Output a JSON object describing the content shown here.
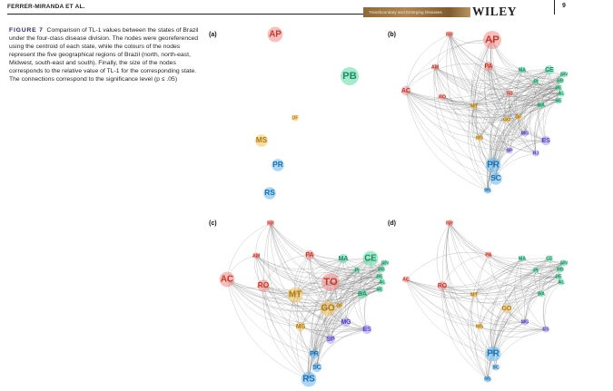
{
  "header": {
    "running_head": "FERRER-MIRANDA ET AL.",
    "journal_banner": "Transboundary and Emerging Diseases",
    "publisher": "WILEY",
    "page_number": "9"
  },
  "caption": {
    "label": "FIGURE 7",
    "text": "Comparison of TL-1 values between the states of Brazil under the four-class disease division. The nodes were georeferenced using the centroid of each state, while the colours of the nodes represent the five geographical regions of Brazil (north, north-east, Midwest, south-east and south). Finally, the size of the nodes corresponds to the relative value of TL-1 for the corresponding state. The connections correspond to the significance level (p ≤ .05)"
  },
  "region_colors": {
    "north": "#f08a86",
    "northeast": "#5fd9a6",
    "midwest": "#f2c25c",
    "southeast": "#a99bf0",
    "south": "#62b7ec"
  },
  "panels": [
    {
      "letter": "(a)",
      "edges": false,
      "nodes": [
        {
          "id": "AP",
          "region": "north",
          "size": 4
        },
        {
          "id": "PB",
          "region": "northeast",
          "size": 5
        },
        {
          "id": "DF",
          "region": "midwest",
          "size": 1
        },
        {
          "id": "MS",
          "region": "midwest",
          "size": 3
        },
        {
          "id": "PR",
          "region": "south",
          "size": 3
        },
        {
          "id": "RS",
          "region": "south",
          "size": 3
        }
      ]
    },
    {
      "letter": "(b)",
      "edges": true,
      "nodes": [
        {
          "id": "RR",
          "region": "north",
          "size": 1
        },
        {
          "id": "AP",
          "region": "north",
          "size": 5
        },
        {
          "id": "AM",
          "region": "north",
          "size": 1
        },
        {
          "id": "PA",
          "region": "north",
          "size": 2
        },
        {
          "id": "AC",
          "region": "north",
          "size": 2
        },
        {
          "id": "RO",
          "region": "north",
          "size": 1
        },
        {
          "id": "TO",
          "region": "north",
          "size": 1
        },
        {
          "id": "MA",
          "region": "northeast",
          "size": 1
        },
        {
          "id": "CE",
          "region": "northeast",
          "size": 2
        },
        {
          "id": "RN",
          "region": "northeast",
          "size": 1
        },
        {
          "id": "PB",
          "region": "northeast",
          "size": 1
        },
        {
          "id": "PI",
          "region": "northeast",
          "size": 1
        },
        {
          "id": "PE",
          "region": "northeast",
          "size": 1
        },
        {
          "id": "AL",
          "region": "northeast",
          "size": 1
        },
        {
          "id": "SE",
          "region": "northeast",
          "size": 1
        },
        {
          "id": "BA",
          "region": "northeast",
          "size": 1
        },
        {
          "id": "MT",
          "region": "midwest",
          "size": 1
        },
        {
          "id": "GO",
          "region": "midwest",
          "size": 1
        },
        {
          "id": "DF",
          "region": "midwest",
          "size": 1
        },
        {
          "id": "MS",
          "region": "midwest",
          "size": 1
        },
        {
          "id": "MG",
          "region": "southeast",
          "size": 1
        },
        {
          "id": "ES",
          "region": "southeast",
          "size": 2
        },
        {
          "id": "RJ",
          "region": "southeast",
          "size": 1
        },
        {
          "id": "SP",
          "region": "southeast",
          "size": 1
        },
        {
          "id": "PR",
          "region": "south",
          "size": 4
        },
        {
          "id": "SC",
          "region": "south",
          "size": 3
        },
        {
          "id": "RS",
          "region": "south",
          "size": 1
        }
      ]
    },
    {
      "letter": "(c)",
      "edges": true,
      "nodes": [
        {
          "id": "RR",
          "region": "north",
          "size": 1
        },
        {
          "id": "AM",
          "region": "north",
          "size": 1
        },
        {
          "id": "PA",
          "region": "north",
          "size": 2
        },
        {
          "id": "AC",
          "region": "north",
          "size": 4
        },
        {
          "id": "RO",
          "region": "north",
          "size": 3
        },
        {
          "id": "TO",
          "region": "north",
          "size": 5
        },
        {
          "id": "MA",
          "region": "northeast",
          "size": 2
        },
        {
          "id": "CE",
          "region": "northeast",
          "size": 4
        },
        {
          "id": "RN",
          "region": "northeast",
          "size": 1
        },
        {
          "id": "PB",
          "region": "northeast",
          "size": 1
        },
        {
          "id": "PI",
          "region": "northeast",
          "size": 1
        },
        {
          "id": "PE",
          "region": "northeast",
          "size": 1
        },
        {
          "id": "AL",
          "region": "northeast",
          "size": 1
        },
        {
          "id": "SE",
          "region": "northeast",
          "size": 1
        },
        {
          "id": "BA",
          "region": "northeast",
          "size": 2
        },
        {
          "id": "MT",
          "region": "midwest",
          "size": 4
        },
        {
          "id": "GO",
          "region": "midwest",
          "size": 4
        },
        {
          "id": "DF",
          "region": "midwest",
          "size": 1
        },
        {
          "id": "MS",
          "region": "midwest",
          "size": 2
        },
        {
          "id": "MG",
          "region": "southeast",
          "size": 2
        },
        {
          "id": "ES",
          "region": "southeast",
          "size": 2
        },
        {
          "id": "SP",
          "region": "southeast",
          "size": 2
        },
        {
          "id": "PR",
          "region": "south",
          "size": 2
        },
        {
          "id": "SC",
          "region": "south",
          "size": 2
        },
        {
          "id": "RS",
          "region": "south",
          "size": 4
        }
      ]
    },
    {
      "letter": "(d)",
      "edges": true,
      "nodes": [
        {
          "id": "RR",
          "region": "north",
          "size": 1
        },
        {
          "id": "PA",
          "region": "north",
          "size": 1
        },
        {
          "id": "AC",
          "region": "north",
          "size": 1
        },
        {
          "id": "RO",
          "region": "north",
          "size": 2
        },
        {
          "id": "MA",
          "region": "northeast",
          "size": 1
        },
        {
          "id": "CE",
          "region": "northeast",
          "size": 1
        },
        {
          "id": "RN",
          "region": "northeast",
          "size": 1
        },
        {
          "id": "PB",
          "region": "northeast",
          "size": 1
        },
        {
          "id": "PI",
          "region": "northeast",
          "size": 1
        },
        {
          "id": "PE",
          "region": "northeast",
          "size": 1
        },
        {
          "id": "AL",
          "region": "northeast",
          "size": 1
        },
        {
          "id": "BA",
          "region": "northeast",
          "size": 1
        },
        {
          "id": "MT",
          "region": "midwest",
          "size": 1
        },
        {
          "id": "GO",
          "region": "midwest",
          "size": 2
        },
        {
          "id": "MS",
          "region": "midwest",
          "size": 1
        },
        {
          "id": "MG",
          "region": "southeast",
          "size": 1
        },
        {
          "id": "ES",
          "region": "southeast",
          "size": 1
        },
        {
          "id": "PR",
          "region": "south",
          "size": 4
        },
        {
          "id": "SC",
          "region": "south",
          "size": 1
        },
        {
          "id": "RS",
          "region": "south",
          "size": 1
        }
      ]
    }
  ]
}
